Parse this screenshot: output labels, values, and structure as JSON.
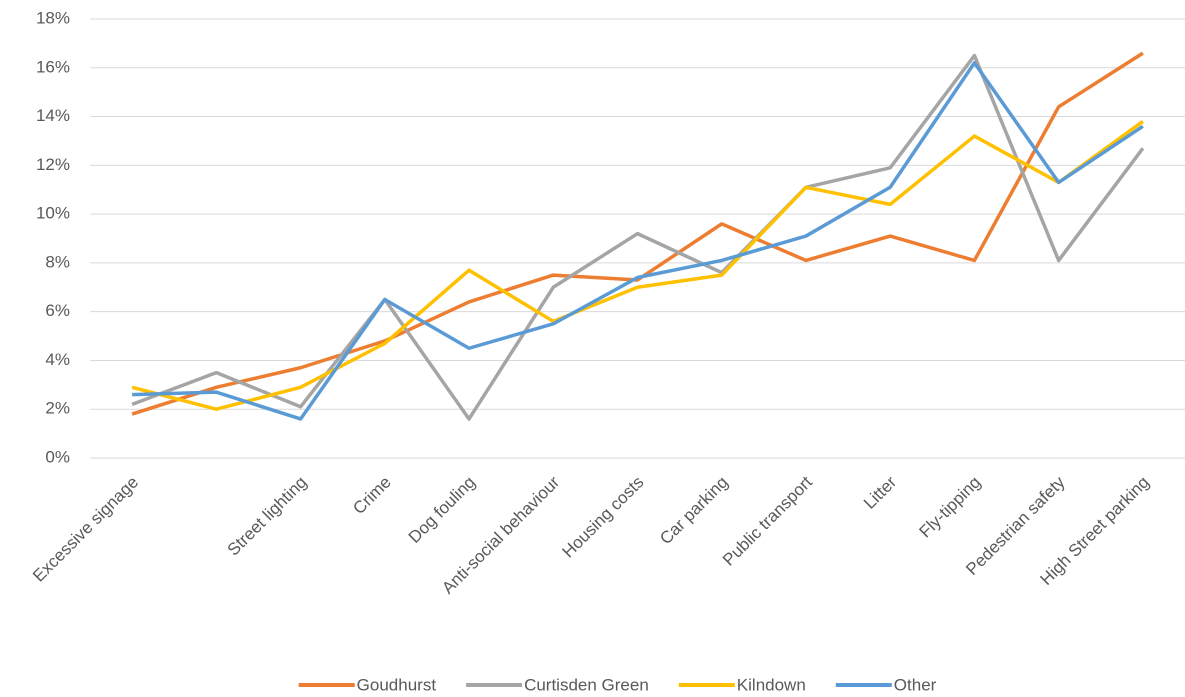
{
  "chart_data": {
    "type": "line",
    "categories": [
      "Excessive signage",
      null,
      "Street lighting",
      "Crime",
      "Dog fouling",
      "Anti-social behaviour",
      "Housing costs",
      "Car parking",
      "Public transport",
      "Litter",
      "Fly-tipping",
      "Pedestrian safety",
      "High Street parking"
    ],
    "series": [
      {
        "name": "Goudhurst",
        "color": "#ed7d31",
        "values": [
          1.8,
          2.9,
          3.7,
          4.8,
          6.4,
          7.5,
          7.3,
          9.6,
          8.1,
          9.1,
          8.1,
          14.4,
          16.6
        ]
      },
      {
        "name": "Curtisden Green",
        "color": "#a5a5a5",
        "values": [
          2.2,
          3.5,
          2.1,
          6.5,
          1.6,
          7.0,
          9.2,
          7.6,
          11.1,
          11.9,
          16.5,
          8.1,
          12.7
        ]
      },
      {
        "name": "Kilndown",
        "color": "#ffc000",
        "values": [
          2.9,
          2.0,
          2.9,
          4.7,
          7.7,
          5.6,
          7.0,
          7.5,
          11.1,
          10.4,
          13.2,
          11.3,
          13.8
        ]
      },
      {
        "name": "Other",
        "color": "#5b9bd5",
        "values": [
          2.6,
          2.7,
          1.6,
          6.5,
          4.5,
          5.5,
          7.4,
          8.1,
          9.1,
          11.1,
          16.2,
          11.3,
          13.6
        ]
      }
    ],
    "ylim": [
      0,
      18
    ],
    "yticks": [
      {
        "value": 0,
        "label": "0%"
      },
      {
        "value": 2,
        "label": "2%"
      },
      {
        "value": 4,
        "label": "4%"
      },
      {
        "value": 6,
        "label": "6%"
      },
      {
        "value": 8,
        "label": "8%"
      },
      {
        "value": 10,
        "label": "10%"
      },
      {
        "value": 12,
        "label": "12%"
      },
      {
        "value": 14,
        "label": "14%"
      },
      {
        "value": 16,
        "label": "16%"
      },
      {
        "value": 18,
        "label": "18%"
      }
    ],
    "grid": true,
    "legend": "bottom"
  }
}
